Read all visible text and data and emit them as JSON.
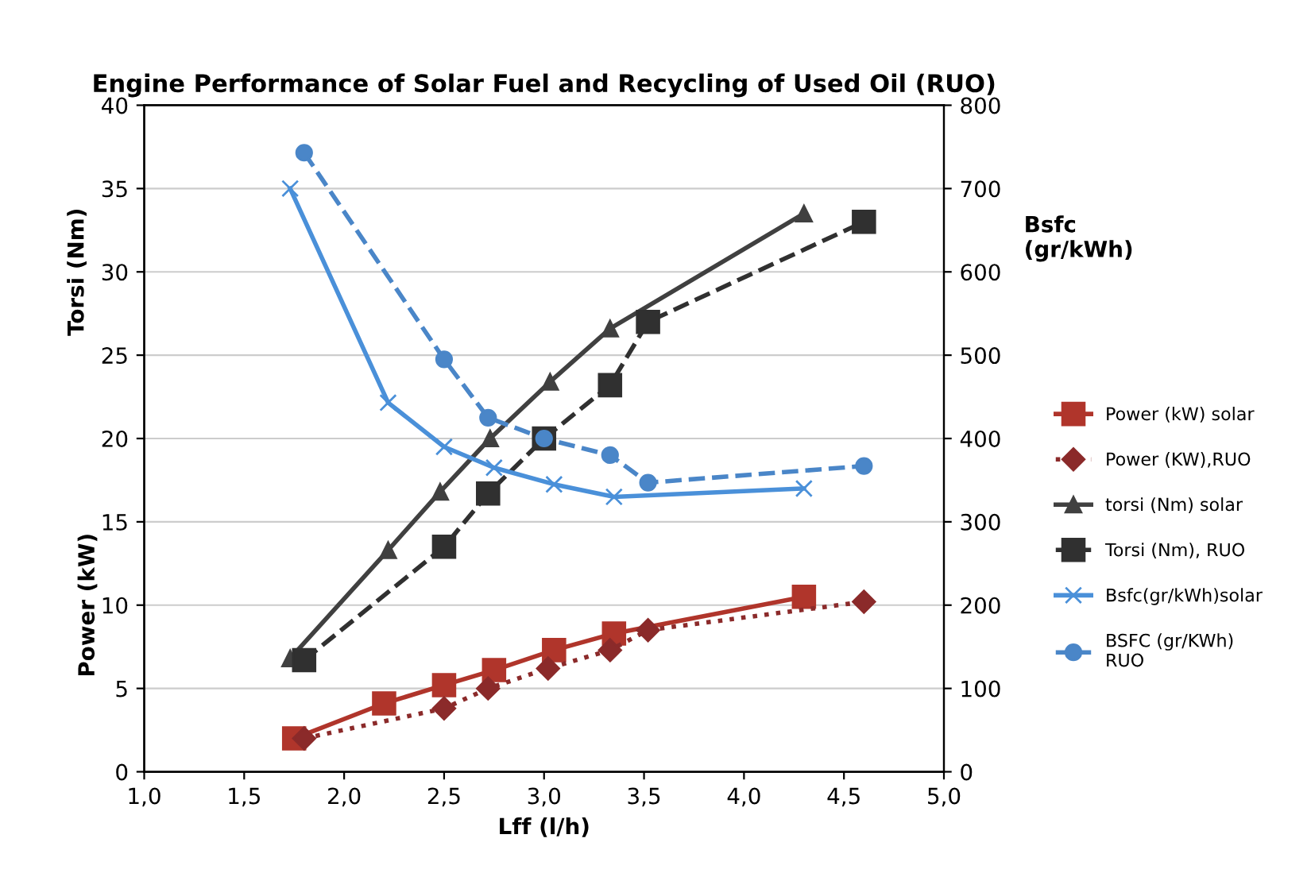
{
  "chart_data": {
    "type": "line",
    "title": "Engine Performance of Solar Fuel and Recycling of Used Oil (RUO)",
    "xlabel": "Lff (l/h)",
    "ylabel": "Torsi (Nm)",
    "y2label": "Bsfc\n(gr/kWh)",
    "annotations": [
      "Power (kW)"
    ],
    "xlim": [
      1.0,
      5.0
    ],
    "xticks": [
      {
        "value": 1.0,
        "label": "1,0"
      },
      {
        "value": 1.5,
        "label": "1,5"
      },
      {
        "value": 2.0,
        "label": "2,0"
      },
      {
        "value": 2.5,
        "label": "2,5"
      },
      {
        "value": 3.0,
        "label": "3,0"
      },
      {
        "value": 3.5,
        "label": "3,5"
      },
      {
        "value": 4.0,
        "label": "4,0"
      },
      {
        "value": 4.5,
        "label": "4,5"
      },
      {
        "value": 5.0,
        "label": "5,0"
      }
    ],
    "ylim": [
      0,
      40
    ],
    "yticks": [
      0,
      5,
      10,
      15,
      20,
      25,
      30,
      35,
      40
    ],
    "y2lim": [
      0,
      800
    ],
    "y2ticks": [
      0,
      100,
      200,
      300,
      400,
      500,
      600,
      700,
      800
    ],
    "grid": "y",
    "legend": "right",
    "series": [
      {
        "name": "Power (kW) solar",
        "color": "#b0352b",
        "marker": "square",
        "line_style": "solid",
        "x": [
          1.75,
          2.2,
          2.5,
          2.75,
          3.05,
          3.35,
          4.3
        ],
        "values": [
          2.0,
          4.1,
          5.2,
          6.1,
          7.3,
          8.3,
          10.5
        ]
      },
      {
        "name": "Power (KW),RUO",
        "color": "#8b2a2a",
        "marker": "diamond",
        "line_style": "dotted",
        "x": [
          1.8,
          2.5,
          2.72,
          3.02,
          3.33,
          3.52,
          4.6
        ],
        "values": [
          2.0,
          3.8,
          5.0,
          6.2,
          7.3,
          8.5,
          10.2
        ]
      },
      {
        "name": "torsi (Nm) solar",
        "color": "#404040",
        "marker": "triangle",
        "line_style": "solid",
        "x": [
          1.73,
          2.22,
          2.48,
          2.73,
          3.03,
          3.33,
          4.3
        ],
        "values": [
          6.8,
          13.3,
          16.8,
          20.0,
          23.4,
          26.6,
          33.5
        ]
      },
      {
        "name": "Torsi (Nm), RUO",
        "color": "#303030",
        "marker": "square",
        "line_style": "dashed",
        "x": [
          1.8,
          2.5,
          2.72,
          3.0,
          3.33,
          3.52,
          4.6
        ],
        "values": [
          6.7,
          13.5,
          16.7,
          20.0,
          23.2,
          27.0,
          33.0
        ]
      },
      {
        "name": "Bsfc(gr/kWh)solar",
        "color": "#4a90d9",
        "marker": "cross",
        "line_style": "solid",
        "axis": "y2",
        "x": [
          1.73,
          2.22,
          2.5,
          2.75,
          3.05,
          3.35,
          4.3
        ],
        "values": [
          700,
          443,
          390,
          365,
          345,
          330,
          340
        ]
      },
      {
        "name": "BSFC (gr/KWh)\nRUO",
        "color": "#4a86c8",
        "marker": "circle",
        "line_style": "dashed",
        "axis": "y2",
        "x": [
          1.8,
          2.5,
          2.72,
          3.0,
          3.33,
          3.52,
          4.6
        ],
        "values": [
          743,
          495,
          425,
          400,
          380,
          347,
          367
        ]
      }
    ]
  }
}
